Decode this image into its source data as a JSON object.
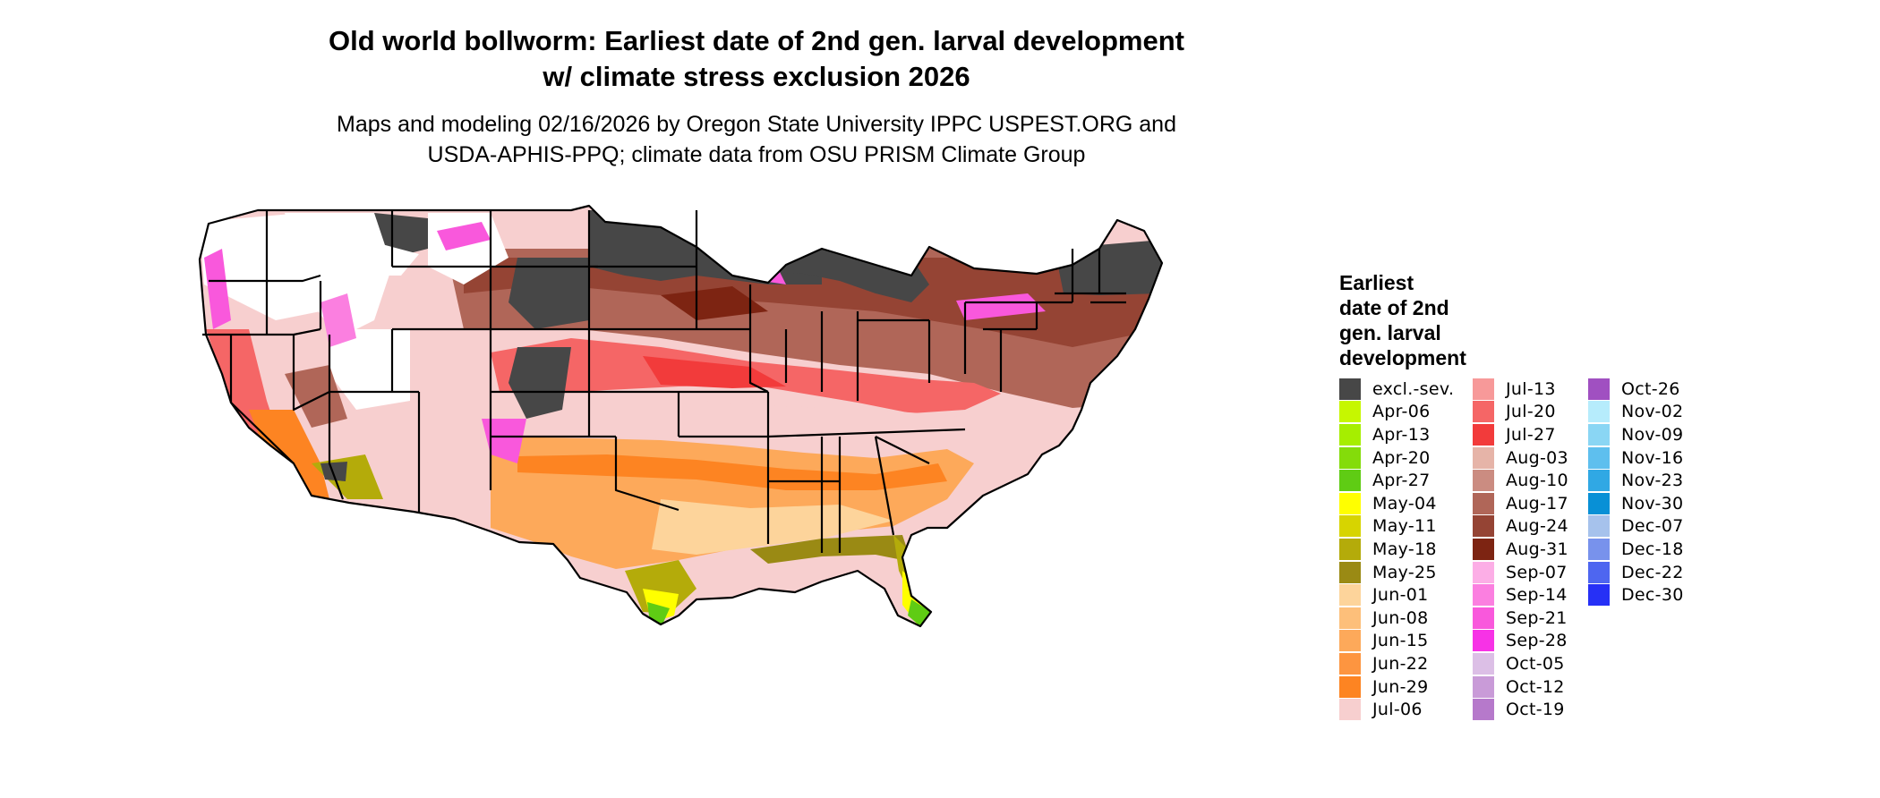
{
  "title_line1": "Old world bollworm: Earliest date of 2nd gen. larval development",
  "title_line2": "w/ climate stress exclusion 2026",
  "subtitle_line1": "Maps and modeling 02/16/2026 by Oregon State University IPPC USPEST.ORG and",
  "subtitle_line2": "USDA-APHIS-PPQ; climate data from OSU PRISM Climate Group",
  "legend": {
    "title_lines": [
      "Earliest",
      "date of 2nd",
      "gen. larval",
      "development"
    ],
    "columns": [
      [
        {
          "label": "excl.-sev.",
          "color": "#474747"
        },
        {
          "label": "Apr-06",
          "color": "#c6f700"
        },
        {
          "label": "Apr-13",
          "color": "#a6ee00"
        },
        {
          "label": "Apr-20",
          "color": "#84dc0a"
        },
        {
          "label": "Apr-27",
          "color": "#5fcc14"
        },
        {
          "label": "May-04",
          "color": "#ffff00"
        },
        {
          "label": "May-11",
          "color": "#d7d400"
        },
        {
          "label": "May-18",
          "color": "#b4ab0a"
        },
        {
          "label": "May-25",
          "color": "#9a8a14"
        },
        {
          "label": "Jun-01",
          "color": "#fdd49b"
        },
        {
          "label": "Jun-08",
          "color": "#fdbf7a"
        },
        {
          "label": "Jun-15",
          "color": "#fda95a"
        },
        {
          "label": "Jun-22",
          "color": "#fd9540"
        },
        {
          "label": "Jun-29",
          "color": "#fd8422"
        },
        {
          "label": "Jul-06",
          "color": "#f7cfcf"
        }
      ],
      [
        {
          "label": "Jul-13",
          "color": "#f79999"
        },
        {
          "label": "Jul-20",
          "color": "#f56666"
        },
        {
          "label": "Jul-27",
          "color": "#f23b3b"
        },
        {
          "label": "Aug-03",
          "color": "#e6b4a8"
        },
        {
          "label": "Aug-10",
          "color": "#cb8c81"
        },
        {
          "label": "Aug-17",
          "color": "#b06658"
        },
        {
          "label": "Aug-24",
          "color": "#954434"
        },
        {
          "label": "Aug-31",
          "color": "#7d2412"
        },
        {
          "label": "Sep-07",
          "color": "#fcaee6"
        },
        {
          "label": "Sep-14",
          "color": "#fb7fe0"
        },
        {
          "label": "Sep-21",
          "color": "#f958dc"
        },
        {
          "label": "Sep-28",
          "color": "#f732e6"
        },
        {
          "label": "Oct-05",
          "color": "#dcbfe6"
        },
        {
          "label": "Oct-12",
          "color": "#c99bd8"
        },
        {
          "label": "Oct-19",
          "color": "#b679cb"
        }
      ],
      [
        {
          "label": "Oct-26",
          "color": "#a050c1"
        },
        {
          "label": "Nov-02",
          "color": "#b6ecfc"
        },
        {
          "label": "Nov-09",
          "color": "#8ad6f4"
        },
        {
          "label": "Nov-16",
          "color": "#5ebfee"
        },
        {
          "label": "Nov-23",
          "color": "#30a8e4"
        },
        {
          "label": "Nov-30",
          "color": "#0890d6"
        },
        {
          "label": "Dec-07",
          "color": "#a6c2ec"
        },
        {
          "label": "Dec-18",
          "color": "#7892ec"
        },
        {
          "label": "Dec-22",
          "color": "#4e66f0"
        },
        {
          "label": "Dec-30",
          "color": "#2630f6"
        }
      ]
    ]
  }
}
